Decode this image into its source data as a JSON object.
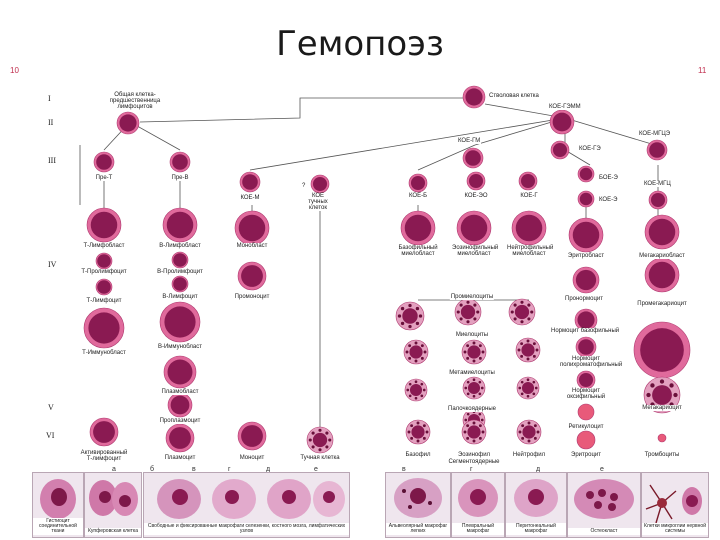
{
  "slide": {
    "title": "Гемопоэз",
    "page_left": "10",
    "page_right": "11"
  },
  "stages": [
    "I",
    "II",
    "III",
    "IV",
    "V",
    "VI"
  ],
  "labels": {
    "common_lymph": "Общая клетка-предшественница лимфоцитов",
    "stem_cell": "Стволовая клетка",
    "koe_gemm": "КОЕ-ГЭММ",
    "koe_meg": "КОЕ-МГЦЭ",
    "koe_gm": "КОЕ-ГМ",
    "koe_ge": "КОЕ-ГЭ",
    "pre_t": "Пре-Т",
    "pre_b": "Пре-В",
    "koe_m": "КОЕ-М",
    "koe_tuchn": "КОЕ тучных клеток",
    "koe_b": "КОЕ-Б",
    "koe_eo": "КОЕ-ЭО",
    "koe_g": "КОЕ-Г",
    "boe_e": "БОЕ-Э",
    "koe_e": "КОЕ-Э",
    "koe_mgc": "КОЕ-МГЦ",
    "t_lymphoblast": "Т-Лимфобласт",
    "b_lymphoblast": "В-Лимфобласт",
    "monoblast": "Монобласт",
    "baso_myeloblast": "Базофильный миелобласт",
    "eos_myeloblast": "Эозинофильный миелобласт",
    "neut_myeloblast": "Нейтрофильный миелобласт",
    "erythroblast": "Эритробласт",
    "megakaryoblast": "Мегакариобласт",
    "t_prolymph": "Т-Пролимфоцит",
    "b_prolymph": "В-Пролимфоцит",
    "t_lymph": "Т-Лимфоцит",
    "b_lymph": "В-Лимфоцит",
    "promonocyte": "Промоноцит",
    "promyelocytes": "Промиелоциты",
    "pronormocyte": "Пронормоцит",
    "promegakaryocyte": "Промегакариоцит",
    "myelocytes": "Миелоциты",
    "normo_baso": "Нормоцит базофильный",
    "normo_poly": "Нормоцит полихроматофильный",
    "normo_oxy": "Нормоцит оксифильный",
    "t_immunoblast": "Т-Иммунобласт",
    "b_immunoblast": "В-Иммунобласт",
    "metamyelocytes": "Метамиелоциты",
    "band": "Палочкоядерные",
    "megakaryocyte": "Мегакариоцит",
    "plasmablast": "Плазмобласт",
    "proplasmocyte": "Проплазмоцит",
    "reticulocyte": "Ретикулоцит",
    "activated_t": "Активированный Т-лимфоцит",
    "plasmocyte": "Плазмоцит",
    "monocyte": "Моноцит",
    "mast_cell": "Тучная клетка",
    "basophil": "Базофил",
    "eosinophil": "Эозинофил",
    "neutrophil": "Нейтрофил",
    "segmented": "Сегментоядерные",
    "erythrocyte": "Эритроцит",
    "platelets": "Тромбоциты",
    "question": "?"
  },
  "bottom_band_letters": [
    "а",
    "б",
    "в",
    "г",
    "д",
    "е",
    "в",
    "г",
    "д",
    "е"
  ],
  "bottom_panels": [
    {
      "caption": "Гистиоцит соединительной ткани"
    },
    {
      "caption": "Купферовская клетка"
    },
    {
      "caption": "Свободные и фиксированные макрофаги селезенки, костного мозга, лимфатических узлов"
    },
    {
      "caption": "Альвеолярный макрофаг легких"
    },
    {
      "caption": "Плевральный макрофаг"
    },
    {
      "caption": "Перитонеальный макрофаг"
    },
    {
      "caption": "Остеокласт"
    },
    {
      "caption": "Клетки микроглии нервной системы"
    }
  ],
  "colors": {
    "nucleus": "#8a1a52",
    "cytoplasm": "#e06a9c",
    "line": "#555555",
    "rbc": "#e85a7a"
  }
}
